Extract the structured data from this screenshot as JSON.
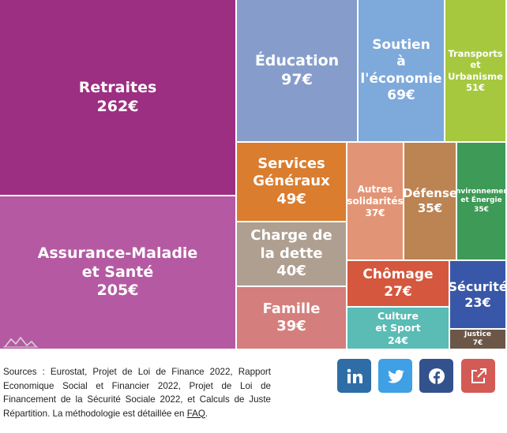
{
  "chart_data": {
    "type": "treemap",
    "currency": "€",
    "items": [
      {
        "label": "Retraites",
        "value": 262,
        "display": "262€",
        "color": "#9C2F82"
      },
      {
        "label": "Assurance-Maladie\net Santé",
        "value": 205,
        "display": "205€",
        "color": "#B55AA2"
      },
      {
        "label": "Éducation",
        "value": 97,
        "display": "97€",
        "color": "#869DCB"
      },
      {
        "label": "Soutien\nà l'économie",
        "value": 69,
        "display": "69€",
        "color": "#7EA9DB"
      },
      {
        "label": "Transports\net Urbanisme",
        "value": 51,
        "display": "51€",
        "color": "#A6C83F"
      },
      {
        "label": "Services\nGénéraux",
        "value": 49,
        "display": "49€",
        "color": "#DA7D2F"
      },
      {
        "label": "Autres\nsolidarités",
        "value": 37,
        "display": "37€",
        "color": "#E29476"
      },
      {
        "label": "Défense",
        "value": 35,
        "display": "35€",
        "color": "#BC8353"
      },
      {
        "label": "Environnement\net Énergie",
        "value": 35,
        "display": "35€",
        "color": "#3E9A57"
      },
      {
        "label": "Charge de\nla dette",
        "value": 40,
        "display": "40€",
        "color": "#AE9F91"
      },
      {
        "label": "Chômage",
        "value": 27,
        "display": "27€",
        "color": "#D4573E"
      },
      {
        "label": "Sécurité",
        "value": 23,
        "display": "23€",
        "color": "#3957A8"
      },
      {
        "label": "Famille",
        "value": 39,
        "display": "39€",
        "color": "#D47F7D"
      },
      {
        "label": "Culture\net Sport",
        "value": 24,
        "display": "24€",
        "color": "#5ABCB4"
      },
      {
        "label": "Justice",
        "value": 7,
        "display": "7€",
        "color": "#6B5647"
      }
    ]
  },
  "footer": {
    "sources_text": "Sources : Eurostat, Projet de Loi de Finance 2022, Rapport Economique Social et Financier 2022, Projet de Loi de Financement de la Sécurité Sociale 2022, et Calculs de Juste Répartition. La méthodologie est détaillée en ",
    "faq_link": "FAQ",
    "period": "."
  },
  "share_buttons": [
    {
      "name": "linkedin",
      "icon": "linkedin-icon",
      "color": "#2F6DA6"
    },
    {
      "name": "twitter",
      "icon": "twitter-icon",
      "color": "#3FA0E6"
    },
    {
      "name": "facebook",
      "icon": "facebook-icon",
      "color": "#33528D"
    },
    {
      "name": "share",
      "icon": "share-icon",
      "color": "#D45A55"
    }
  ]
}
